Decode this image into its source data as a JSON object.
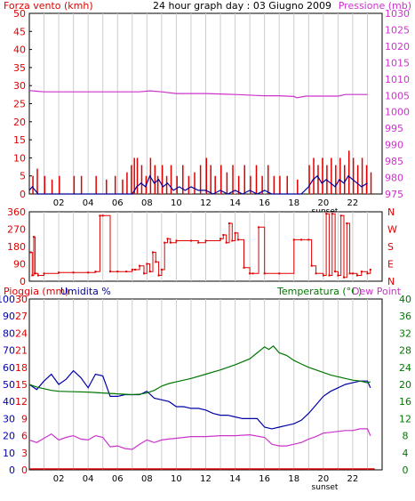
{
  "header": {
    "title": "24 hour graph day : 03 Giugno 2009",
    "wind_label": "Forza vento (kmh)",
    "pressure_label": "Pressione (mb)"
  },
  "colors": {
    "wind": "#e00000",
    "pressure": "#cc33cc",
    "gust_blue": "#000099",
    "gust_green": "#008800",
    "rain": "#e00000",
    "humidity": "#0000aa",
    "temperature": "#007700",
    "dewpoint": "#cc33cc",
    "grid": "#cccccc",
    "frame": "#000000"
  },
  "chart_data": [
    {
      "type": "line",
      "title": "24 hour graph day : 03 Giugno 2009",
      "ylabel": "Forza vento (kmh)",
      "ylabel_right": "Pressione (mb)",
      "x_ticks": [
        "02",
        "04",
        "06",
        "08",
        "10",
        "12",
        "14",
        "16",
        "18",
        "20",
        "22"
      ],
      "x_annotation": "sunset",
      "ylim": [
        0,
        50
      ],
      "yticks": [
        0,
        5,
        10,
        15,
        20,
        25,
        30,
        35,
        40,
        45,
        50
      ],
      "ylim_right": [
        975,
        1030
      ],
      "yticks_right": [
        975,
        980,
        985,
        990,
        995,
        1000,
        1005,
        1010,
        1015,
        1020,
        1025,
        1030
      ],
      "series": [
        {
          "axis": "right",
          "x": [
            0,
            0.5,
            1,
            2,
            4,
            6,
            7.5,
            8.2,
            9,
            10,
            12,
            14,
            15.5,
            16,
            17,
            18,
            18.2,
            18.8,
            19.5,
            21,
            21.5,
            22,
            23
          ],
          "values": [
            1006.5,
            1006.3,
            1006.1,
            1006.1,
            1006.1,
            1006.1,
            1006.1,
            1006.4,
            1006.1,
            1005.6,
            1005.6,
            1005.3,
            1005.0,
            1004.9,
            1004.9,
            1004.7,
            1004.3,
            1004.8,
            1004.8,
            1004.8,
            1005.3,
            1005.3,
            1005.3
          ]
        },
        {
          "axis": "left",
          "style": "bars",
          "x": [
            0.2,
            0.5,
            1.0,
            1.5,
            2.0,
            3.0,
            3.5,
            4.5,
            5.2,
            5.8,
            6.3,
            6.6,
            6.9,
            7.1,
            7.3,
            7.6,
            7.9,
            8.2,
            8.5,
            8.7,
            9.0,
            9.3,
            9.6,
            10.0,
            10.4,
            10.8,
            11.2,
            11.6,
            12.0,
            12.3,
            12.6,
            13.0,
            13.4,
            13.8,
            14.2,
            14.6,
            15.0,
            15.4,
            15.8,
            16.2,
            16.6,
            17.0,
            17.5,
            18.2,
            19.0,
            19.3,
            19.6,
            19.9,
            20.2,
            20.5,
            20.8,
            21.1,
            21.4,
            21.7,
            22.0,
            22.3,
            22.6,
            22.9,
            23.2
          ],
          "values": [
            5,
            7,
            5,
            4,
            5,
            5,
            5,
            5,
            4,
            5,
            4,
            6,
            8,
            10,
            10,
            8,
            5,
            10,
            8,
            5,
            8,
            5,
            8,
            5,
            8,
            5,
            6,
            8,
            10,
            8,
            5,
            8,
            6,
            8,
            5,
            8,
            5,
            8,
            5,
            8,
            5,
            5,
            5,
            4,
            8,
            10,
            8,
            10,
            8,
            10,
            8,
            10,
            8,
            12,
            10,
            8,
            10,
            8,
            6
          ]
        },
        {
          "axis": "left",
          "x": [
            0,
            0.2,
            0.4,
            0.6,
            1.0,
            2,
            4,
            6,
            7.0,
            7.3,
            7.6,
            7.9,
            8.2,
            8.5,
            8.8,
            9.1,
            9.4,
            9.8,
            10.2,
            10.6,
            11.0,
            11.5,
            12.0,
            12.5,
            13.0,
            13.5,
            14.0,
            14.5,
            15.0,
            15.5,
            16.0,
            16.5,
            17.0,
            17.5,
            18.0,
            18.5,
            19.0,
            19.3,
            19.6,
            19.9,
            20.2,
            20.5,
            20.8,
            21.1,
            21.4,
            21.7,
            22.0,
            22.3,
            22.6,
            23.0
          ],
          "values": [
            1,
            2,
            1,
            0,
            0,
            0,
            0,
            0,
            0,
            2,
            3,
            2,
            5,
            3,
            4,
            2,
            3,
            1,
            2,
            1,
            2,
            1,
            1,
            0,
            1,
            0,
            1,
            0,
            1,
            0,
            1,
            0,
            0,
            0,
            0,
            0,
            2,
            4,
            5,
            3,
            4,
            3,
            2,
            4,
            3,
            5,
            4,
            3,
            2,
            3
          ]
        }
      ]
    },
    {
      "type": "scatter",
      "ylabel_right": "N W S E N",
      "ylim": [
        0,
        360
      ],
      "yticks": [
        0,
        90,
        180,
        270,
        360
      ],
      "compass": [
        "N",
        "W",
        "S",
        "E",
        "N"
      ],
      "series": [
        {
          "x": [
            0.1,
            0.2,
            0.3,
            0.4,
            0.6,
            1.0,
            2.0,
            3.0,
            4.0,
            4.5,
            4.8,
            5.0,
            5.5,
            6.0,
            6.6,
            7.0,
            7.2,
            7.5,
            7.8,
            8.0,
            8.2,
            8.4,
            8.6,
            8.8,
            9.0,
            9.2,
            9.4,
            9.6,
            10.0,
            11.0,
            11.5,
            12.0,
            13.0,
            13.2,
            13.4,
            13.6,
            13.8,
            14.0,
            14.2,
            14.6,
            15.0,
            15.2,
            15.6,
            16.0,
            17.0,
            18.0,
            18.5,
            19.0,
            19.2,
            19.5,
            20.0,
            20.2,
            20.4,
            20.6,
            20.8,
            21.0,
            21.2,
            21.4,
            21.6,
            21.8,
            22.0,
            22.3,
            22.6,
            23.0,
            23.2
          ],
          "values": [
            150,
            30,
            230,
            40,
            30,
            40,
            45,
            45,
            45,
            50,
            340,
            340,
            50,
            50,
            50,
            60,
            60,
            80,
            40,
            90,
            50,
            150,
            100,
            30,
            60,
            200,
            220,
            200,
            210,
            210,
            200,
            210,
            220,
            240,
            200,
            300,
            210,
            250,
            215,
            70,
            40,
            40,
            280,
            40,
            40,
            215,
            215,
            215,
            80,
            40,
            30,
            350,
            30,
            350,
            50,
            30,
            340,
            20,
            300,
            40,
            40,
            30,
            50,
            40,
            60
          ]
        }
      ]
    },
    {
      "type": "line",
      "ylabel": "Pioggia (mm)",
      "ylabel2": "Umidita %",
      "ylabel_right": "Temperatura (°C)",
      "ylabel_right2": "Dew Point",
      "x_ticks": [
        "02",
        "04",
        "06",
        "08",
        "10",
        "12",
        "14",
        "16",
        "18",
        "20",
        "22"
      ],
      "x_annotation": "sunset",
      "ylim": [
        0,
        30
      ],
      "yticks": [
        0,
        3,
        6,
        9,
        12,
        15,
        18,
        21,
        24,
        27,
        30
      ],
      "ylim_humidity": [
        0,
        100
      ],
      "yticks_humidity": [
        0,
        10,
        20,
        30,
        40,
        50,
        60,
        70,
        80,
        90,
        100
      ],
      "ylim_right": [
        0,
        40
      ],
      "yticks_right": [
        0,
        4,
        8,
        12,
        16,
        20,
        24,
        28,
        32,
        36,
        40
      ],
      "series": [
        {
          "axis": "rain",
          "x": [
            0,
            23.5
          ],
          "values": [
            0,
            0
          ]
        },
        {
          "axis": "humidity",
          "x": [
            0,
            0.5,
            1,
            1.5,
            2,
            2.5,
            3,
            3.5,
            4,
            4.5,
            5,
            5.5,
            6,
            6.5,
            7,
            7.5,
            8,
            8.5,
            9,
            9.5,
            10,
            10.5,
            11,
            11.5,
            12,
            12.5,
            13,
            13.5,
            14,
            14.5,
            15,
            15.5,
            16,
            16.5,
            17,
            17.5,
            18,
            18.5,
            19,
            19.5,
            20,
            20.5,
            21,
            21.5,
            22,
            22.5,
            23,
            23.2
          ],
          "values": [
            50,
            47,
            52,
            56,
            50,
            53,
            58,
            54,
            48,
            56,
            55,
            43,
            43,
            44,
            44,
            44,
            46,
            42,
            41,
            40,
            37,
            37,
            36,
            36,
            35,
            33,
            32,
            32,
            31,
            30,
            30,
            30,
            25,
            24,
            25,
            26,
            27,
            29,
            33,
            38,
            43,
            46,
            48,
            50,
            51,
            52,
            52,
            48
          ]
        },
        {
          "axis": "temperature",
          "x": [
            0,
            0.5,
            1,
            1.5,
            2,
            3,
            4,
            5,
            6,
            7,
            7.5,
            8,
            8.5,
            9,
            9.5,
            10,
            11,
            12,
            13,
            14,
            15,
            15.5,
            16,
            16.3,
            16.6,
            17,
            17.5,
            18,
            18.5,
            19,
            19.5,
            20,
            20.5,
            21,
            21.5,
            22,
            22.5,
            23,
            23.2
          ],
          "values": [
            20.0,
            19.4,
            19.0,
            18.6,
            18.4,
            18.3,
            18.2,
            18.0,
            17.8,
            17.6,
            17.7,
            18.0,
            18.6,
            19.6,
            20.2,
            20.6,
            21.4,
            22.4,
            23.4,
            24.6,
            26.0,
            27.4,
            28.8,
            28.2,
            29.0,
            27.4,
            26.8,
            25.6,
            24.8,
            24.0,
            23.4,
            22.8,
            22.2,
            21.8,
            21.4,
            21.0,
            20.8,
            20.4,
            20.6
          ]
        },
        {
          "axis": "temperature",
          "x": [
            0,
            0.5,
            1,
            1.5,
            2,
            2.5,
            3,
            3.5,
            4,
            4.5,
            5,
            5.5,
            6,
            6.5,
            7,
            7.5,
            8,
            8.5,
            9,
            9.5,
            10,
            11,
            12,
            13,
            14,
            15,
            16,
            16.5,
            17,
            17.5,
            18,
            18.5,
            19,
            19.5,
            20,
            20.5,
            21,
            21.5,
            22,
            22.5,
            23,
            23.2
          ],
          "values": [
            7.0,
            6.4,
            7.4,
            8.4,
            7.0,
            7.6,
            8.0,
            7.2,
            7.0,
            8.0,
            7.6,
            5.4,
            5.6,
            5.0,
            4.8,
            6.0,
            7.0,
            6.4,
            7.0,
            7.2,
            7.4,
            7.8,
            7.8,
            8.0,
            8.0,
            8.2,
            7.6,
            6.0,
            5.6,
            5.6,
            6.0,
            6.4,
            7.2,
            7.8,
            8.6,
            8.8,
            9.0,
            9.2,
            9.2,
            9.6,
            9.6,
            8.0
          ]
        }
      ]
    }
  ],
  "labels": {
    "sunset": "sunset",
    "rain": "Pioggia (mm)",
    "humidity": "Umidita %",
    "temperature": "Temperatura (°C)",
    "dewpoint": "Dew Point"
  }
}
